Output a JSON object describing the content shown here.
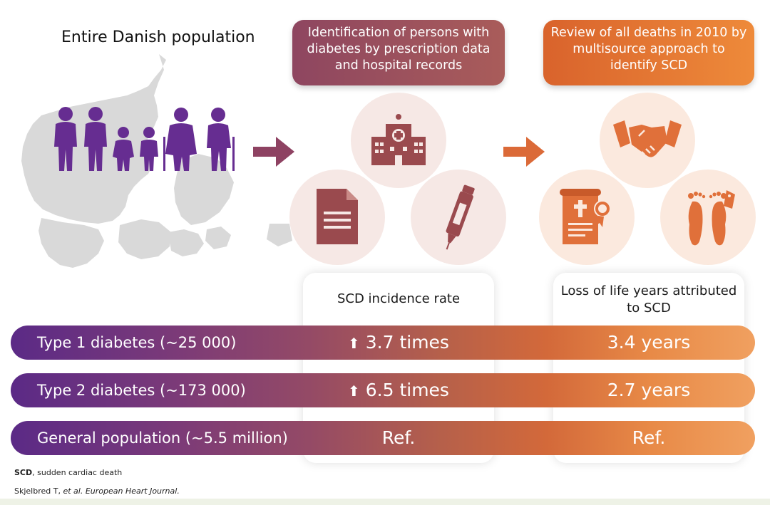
{
  "left": {
    "title": "Entire Danish population"
  },
  "box1": {
    "text": "Identification of persons with diabetes by prescription data and hospital records"
  },
  "box2": {
    "text": "Review of all deaths in 2010 by multisource approach to identify SCD"
  },
  "icons": {
    "set1": [
      "hospital-icon",
      "document-icon",
      "insulin-pen-icon"
    ],
    "set2": [
      "handshake-icon",
      "death-certificate-icon",
      "toe-tag-feet-icon"
    ]
  },
  "columns": {
    "incidence_header": "SCD incidence rate",
    "life_years_header": "Loss of life years attributed to SCD"
  },
  "rows": [
    {
      "label": "Type 1 diabetes (~25 000)",
      "incidence": "3.7 times",
      "life_years": "3.4 years",
      "arrow": "⬆"
    },
    {
      "label": "Type 2 diabetes (~173 000)",
      "incidence": "6.5 times",
      "life_years": "2.7 years",
      "arrow": "⬆"
    },
    {
      "label": "General population (~5.5 million)",
      "incidence": "Ref.",
      "life_years": "Ref."
    }
  ],
  "footnotes": {
    "abbr_bold": "SCD",
    "abbr_rest": ", sudden cardiac death",
    "citation_author": "Skjelbred T, ",
    "citation_etal": "et al.",
    "citation_journal": " European Heart Journal."
  },
  "colors": {
    "purple": "#5b2a86",
    "maroon": "#944a5e",
    "orange": "#e2792f",
    "map_gray": "#d9d9d9"
  }
}
